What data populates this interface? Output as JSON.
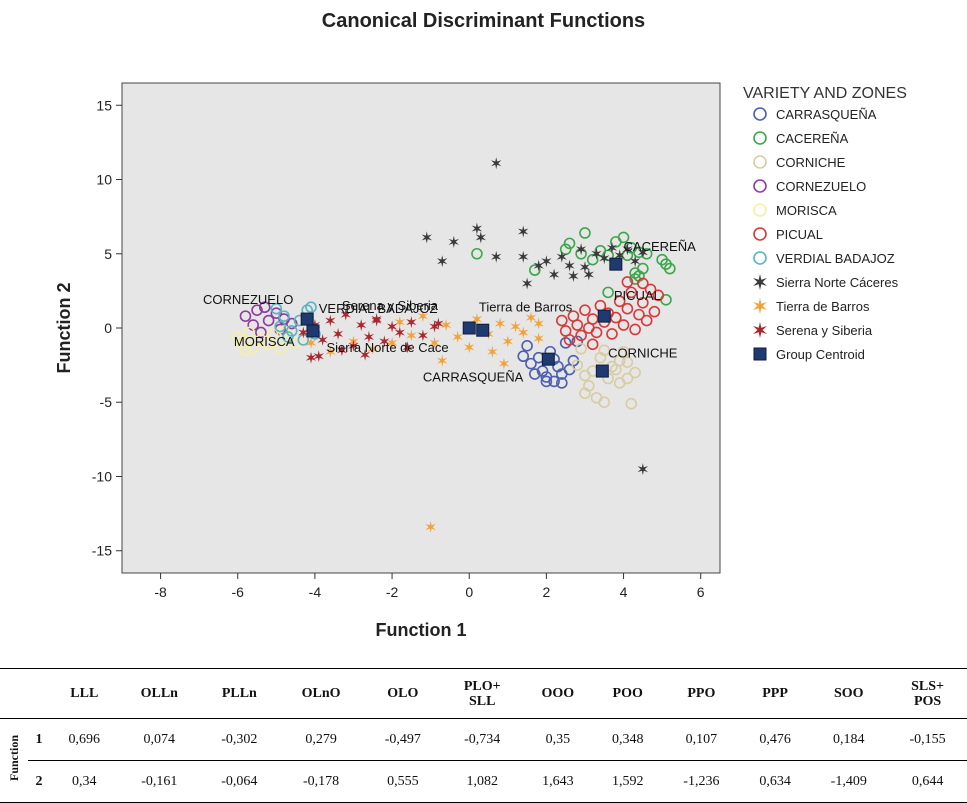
{
  "chart_data": {
    "type": "scatter",
    "title": "Canonical Discriminant Functions",
    "xlabel": "Function 1",
    "ylabel": "Function 2",
    "xlim": [
      -9,
      6.5
    ],
    "ylim": [
      -16.5,
      16.5
    ],
    "xticks": [
      -8,
      -6,
      -4,
      -2,
      0,
      2,
      4,
      6
    ],
    "yticks": [
      15,
      10,
      5,
      0,
      -5,
      -10,
      -15
    ],
    "grid": false,
    "background": "#e6e6e6",
    "legend_title": "VARIETY AND ZONES",
    "legend_position": "right",
    "series": [
      {
        "name": "CARRASQUEÑA",
        "marker": "circle",
        "color": "#4c5fb0",
        "points": [
          [
            1.4,
            -1.9
          ],
          [
            1.6,
            -2.4
          ],
          [
            1.8,
            -2.0
          ],
          [
            1.9,
            -2.9
          ],
          [
            2.0,
            -3.3
          ],
          [
            2.2,
            -3.6
          ],
          [
            2.3,
            -2.6
          ],
          [
            2.4,
            -3.1
          ],
          [
            2.5,
            -1.0
          ],
          [
            2.6,
            -2.8
          ],
          [
            2.7,
            -2.2
          ],
          [
            1.7,
            -3.1
          ],
          [
            2.1,
            -1.6
          ],
          [
            2.0,
            -3.6
          ],
          [
            2.8,
            -0.9
          ],
          [
            1.5,
            -1.2
          ],
          [
            2.4,
            -3.7
          ],
          [
            2.2,
            -2.1
          ]
        ]
      },
      {
        "name": "CACEREÑA",
        "marker": "circle",
        "color": "#3aa84a",
        "points": [
          [
            0.2,
            5.0
          ],
          [
            1.7,
            3.9
          ],
          [
            2.5,
            5.3
          ],
          [
            2.6,
            5.7
          ],
          [
            2.9,
            5.0
          ],
          [
            3.0,
            6.4
          ],
          [
            3.2,
            4.6
          ],
          [
            3.4,
            5.2
          ],
          [
            3.6,
            4.9
          ],
          [
            3.8,
            5.8
          ],
          [
            4.0,
            6.1
          ],
          [
            4.1,
            4.9
          ],
          [
            4.2,
            5.4
          ],
          [
            4.3,
            3.7
          ],
          [
            4.4,
            5.1
          ],
          [
            4.5,
            4.0
          ],
          [
            5.0,
            4.6
          ],
          [
            5.1,
            4.3
          ],
          [
            5.2,
            4.0
          ],
          [
            5.1,
            1.9
          ],
          [
            3.6,
            2.4
          ],
          [
            4.3,
            3.3
          ],
          [
            4.4,
            3.5
          ],
          [
            4.6,
            5.0
          ]
        ]
      },
      {
        "name": "CORNICHE",
        "marker": "circle",
        "color": "#d8cca2",
        "points": [
          [
            2.8,
            -2.5
          ],
          [
            3.0,
            -4.4
          ],
          [
            3.1,
            -3.9
          ],
          [
            3.3,
            -4.7
          ],
          [
            3.5,
            -5.0
          ],
          [
            3.6,
            -3.4
          ],
          [
            3.8,
            -2.8
          ],
          [
            3.9,
            -3.7
          ],
          [
            4.0,
            -1.6
          ],
          [
            4.1,
            -2.3
          ],
          [
            4.2,
            -5.1
          ],
          [
            3.4,
            -2.0
          ],
          [
            3.7,
            -2.6
          ],
          [
            2.9,
            -1.4
          ],
          [
            3.2,
            -2.9
          ],
          [
            3.9,
            -2.2
          ],
          [
            4.3,
            -3.0
          ],
          [
            3.5,
            -1.5
          ],
          [
            3.0,
            -3.2
          ],
          [
            4.1,
            -3.4
          ]
        ]
      },
      {
        "name": "CORNEZUELO",
        "marker": "circle",
        "color": "#8e3d9c",
        "points": [
          [
            -5.8,
            0.8
          ],
          [
            -5.6,
            0.2
          ],
          [
            -5.5,
            1.2
          ],
          [
            -5.4,
            -0.3
          ],
          [
            -5.2,
            0.5
          ],
          [
            -5.0,
            1.0
          ],
          [
            -4.9,
            -0.1
          ],
          [
            -4.8,
            0.6
          ],
          [
            -5.3,
            1.4
          ],
          [
            -4.6,
            0.3
          ]
        ]
      },
      {
        "name": "MORISCA",
        "marker": "circle",
        "color": "#f5f0a0",
        "points": [
          [
            -6.0,
            -0.6
          ],
          [
            -5.9,
            -1.0
          ],
          [
            -5.7,
            -0.3
          ],
          [
            -5.6,
            -1.3
          ],
          [
            -5.4,
            -0.8
          ],
          [
            -5.2,
            -1.1
          ],
          [
            -5.1,
            -0.4
          ],
          [
            -4.9,
            -1.4
          ],
          [
            -4.7,
            -0.7
          ],
          [
            -5.8,
            -1.5
          ],
          [
            -4.5,
            -1.0
          ],
          [
            -4.8,
            -0.2
          ]
        ]
      },
      {
        "name": "PICUAL",
        "marker": "circle",
        "color": "#d9383a",
        "points": [
          [
            2.4,
            0.5
          ],
          [
            2.5,
            -0.2
          ],
          [
            2.7,
            0.8
          ],
          [
            2.8,
            0.2
          ],
          [
            2.9,
            -0.5
          ],
          [
            3.0,
            1.2
          ],
          [
            3.1,
            0.0
          ],
          [
            3.2,
            0.6
          ],
          [
            3.3,
            -0.3
          ],
          [
            3.4,
            1.5
          ],
          [
            3.5,
            0.4
          ],
          [
            3.6,
            1.0
          ],
          [
            3.7,
            -0.4
          ],
          [
            3.8,
            0.7
          ],
          [
            3.9,
            1.8
          ],
          [
            4.0,
            0.2
          ],
          [
            4.1,
            1.3
          ],
          [
            4.2,
            2.4
          ],
          [
            4.3,
            -0.1
          ],
          [
            4.4,
            0.9
          ],
          [
            4.5,
            1.7
          ],
          [
            4.6,
            0.5
          ],
          [
            4.7,
            2.6
          ],
          [
            4.8,
            1.1
          ],
          [
            4.9,
            2.2
          ],
          [
            4.5,
            3.0
          ],
          [
            4.1,
            3.1
          ],
          [
            3.2,
            -1.1
          ],
          [
            2.6,
            -0.8
          ]
        ]
      },
      {
        "name": "VERDIAL BADAJOZ",
        "marker": "circle",
        "color": "#5ab3c3",
        "points": [
          [
            -5.0,
            1.3
          ],
          [
            -4.8,
            0.8
          ],
          [
            -4.6,
            -0.2
          ],
          [
            -4.4,
            0.5
          ],
          [
            -4.2,
            1.2
          ],
          [
            -4.0,
            -0.4
          ],
          [
            -4.9,
            0.1
          ],
          [
            -4.3,
            -0.8
          ],
          [
            -4.1,
            1.4
          ],
          [
            -4.7,
            -0.6
          ]
        ]
      },
      {
        "name": "Sierra Norte Cáceres",
        "marker": "star",
        "color": "#3a3a3a",
        "points": [
          [
            0.7,
            11.1
          ],
          [
            -1.1,
            6.1
          ],
          [
            -0.4,
            5.8
          ],
          [
            -0.7,
            4.5
          ],
          [
            0.3,
            6.1
          ],
          [
            0.2,
            6.7
          ],
          [
            0.7,
            4.8
          ],
          [
            1.4,
            6.5
          ],
          [
            1.4,
            4.8
          ],
          [
            1.5,
            3.0
          ],
          [
            1.8,
            4.2
          ],
          [
            2.0,
            4.5
          ],
          [
            2.2,
            3.6
          ],
          [
            2.4,
            4.8
          ],
          [
            2.6,
            4.2
          ],
          [
            2.9,
            5.3
          ],
          [
            3.0,
            4.1
          ],
          [
            3.1,
            3.6
          ],
          [
            3.3,
            5.0
          ],
          [
            3.5,
            4.7
          ],
          [
            3.7,
            5.4
          ],
          [
            3.9,
            4.9
          ],
          [
            4.1,
            5.3
          ],
          [
            4.3,
            4.5
          ],
          [
            4.5,
            5.1
          ],
          [
            2.7,
            3.5
          ],
          [
            4.5,
            -9.5
          ]
        ]
      },
      {
        "name": "Tierra de Barros",
        "marker": "star",
        "color": "#f2a23a",
        "points": [
          [
            -1.0,
            -13.4
          ],
          [
            -1.8,
            0.4
          ],
          [
            -1.5,
            -0.5
          ],
          [
            -1.2,
            0.8
          ],
          [
            -0.9,
            -1.0
          ],
          [
            -0.6,
            0.2
          ],
          [
            -0.3,
            -0.6
          ],
          [
            0.0,
            -1.3
          ],
          [
            0.2,
            0.6
          ],
          [
            0.5,
            -0.4
          ],
          [
            0.8,
            0.3
          ],
          [
            1.0,
            -0.9
          ],
          [
            1.2,
            0.1
          ],
          [
            1.4,
            -0.3
          ],
          [
            1.6,
            0.7
          ],
          [
            1.8,
            -0.7
          ],
          [
            0.6,
            -1.6
          ],
          [
            -0.7,
            -2.2
          ],
          [
            -3.0,
            -0.9
          ],
          [
            -2.5,
            -1.4
          ],
          [
            -4.1,
            -1.0
          ],
          [
            -3.6,
            -1.6
          ],
          [
            -2.0,
            -1.0
          ],
          [
            0.9,
            -2.4
          ],
          [
            1.8,
            0.3
          ]
        ]
      },
      {
        "name": "Serena y Siberia",
        "marker": "star",
        "color": "#a8282e",
        "points": [
          [
            -4.3,
            -0.3
          ],
          [
            -4.0,
            0.2
          ],
          [
            -3.8,
            -0.8
          ],
          [
            -3.6,
            0.5
          ],
          [
            -3.4,
            -0.4
          ],
          [
            -3.2,
            0.9
          ],
          [
            -3.0,
            -1.2
          ],
          [
            -2.8,
            0.2
          ],
          [
            -2.6,
            -0.6
          ],
          [
            -2.4,
            0.6
          ],
          [
            -2.2,
            -0.9
          ],
          [
            -2.0,
            0.1
          ],
          [
            -1.8,
            -0.3
          ],
          [
            -1.5,
            0.4
          ],
          [
            -1.2,
            -0.5
          ],
          [
            -0.9,
            0.1
          ],
          [
            -3.9,
            -1.9
          ],
          [
            -4.1,
            -2.0
          ],
          [
            -3.3,
            -1.5
          ],
          [
            -2.7,
            -1.8
          ],
          [
            -1.6,
            -1.3
          ],
          [
            -0.8,
            0.3
          ],
          [
            -2.4,
            0.5
          ]
        ]
      },
      {
        "name": "Group Centroid",
        "marker": "square",
        "color": "#1f3a70",
        "points": [
          [
            -4.2,
            0.6
          ],
          [
            -4.05,
            -0.2
          ],
          [
            0.0,
            0.0
          ],
          [
            0.35,
            -0.15
          ],
          [
            2.05,
            -2.1
          ],
          [
            3.5,
            0.8
          ],
          [
            3.8,
            4.3
          ],
          [
            3.45,
            -2.9
          ]
        ]
      }
    ],
    "annotations": [
      {
        "text": "CORNEZUELO",
        "x": -6.9,
        "y": 1.6
      },
      {
        "text": "VERDIAL BADAJOZ",
        "x": -3.9,
        "y": 1.0
      },
      {
        "text": "Serena y Siberia",
        "x": -3.3,
        "y": 1.2
      },
      {
        "text": "MORISCA",
        "x": -6.1,
        "y": -1.2
      },
      {
        "text": "Sierra Norte de Cace",
        "x": -3.7,
        "y": -1.6
      },
      {
        "text": "Tierra de Barros",
        "x": 0.25,
        "y": 1.1
      },
      {
        "text": "CARRASQUEÑA",
        "x": -1.2,
        "y": -3.6
      },
      {
        "text": "PICUAL",
        "x": 3.75,
        "y": 1.9
      },
      {
        "text": "CACEREÑA",
        "x": 4.0,
        "y": 5.2
      },
      {
        "text": "CORNICHE",
        "x": 3.6,
        "y": -2.0
      }
    ]
  },
  "table": {
    "row_group_label": "Function",
    "columns": [
      "LLL",
      "OLLn",
      "PLLn",
      "OLnO",
      "OLO",
      "PLO+ SLL",
      "OOO",
      "POO",
      "PPO",
      "PPP",
      "SOO",
      "SLS+ POS"
    ],
    "rows": [
      {
        "label": "1",
        "values": [
          "0,696",
          "0,074",
          "-0,302",
          "0,279",
          "-0,497",
          "-0,734",
          "0,35",
          "0,348",
          "0,107",
          "0,476",
          "0,184",
          "-0,155"
        ]
      },
      {
        "label": "2",
        "values": [
          "0,34",
          "-0,161",
          "-0,064",
          "-0,178",
          "0,555",
          "1,082",
          "1,643",
          "1,592",
          "-1,236",
          "0,634",
          "-1,409",
          "0,644"
        ]
      }
    ]
  }
}
